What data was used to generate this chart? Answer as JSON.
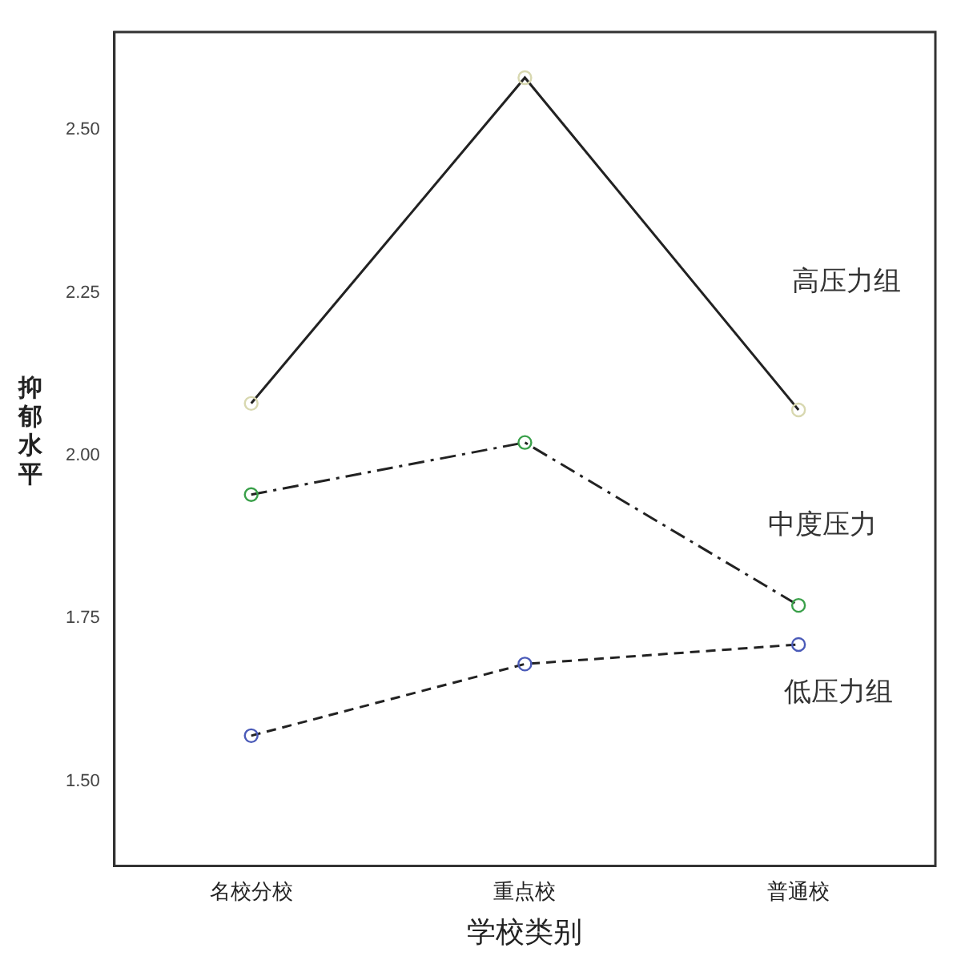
{
  "chart_data": {
    "type": "line",
    "xlabel": "学校类别",
    "ylabel": "抑郁水平",
    "categories": [
      "名校分校",
      "重点校",
      "普通校"
    ],
    "series": [
      {
        "name": "高压力组",
        "color": "#d8d8b0",
        "values": [
          2.08,
          2.58,
          2.07
        ],
        "line_style": "solid"
      },
      {
        "name": "中度压力",
        "color": "#3aa04a",
        "values": [
          1.94,
          2.02,
          1.77
        ],
        "line_style": "dashed"
      },
      {
        "name": "低压力组",
        "color": "#4a5ab8",
        "values": [
          1.57,
          1.68,
          1.71
        ],
        "line_style": "dotted"
      }
    ],
    "ylim": [
      1.37,
      2.65
    ],
    "yticks": [
      {
        "value": 1.5,
        "label": "1.50"
      },
      {
        "value": 1.75,
        "label": "1.75"
      },
      {
        "value": 2.0,
        "label": "2.00"
      },
      {
        "value": 2.25,
        "label": "2.25"
      },
      {
        "value": 2.5,
        "label": "2.50"
      }
    ],
    "grid": false,
    "legend": false,
    "marker": "circle"
  }
}
